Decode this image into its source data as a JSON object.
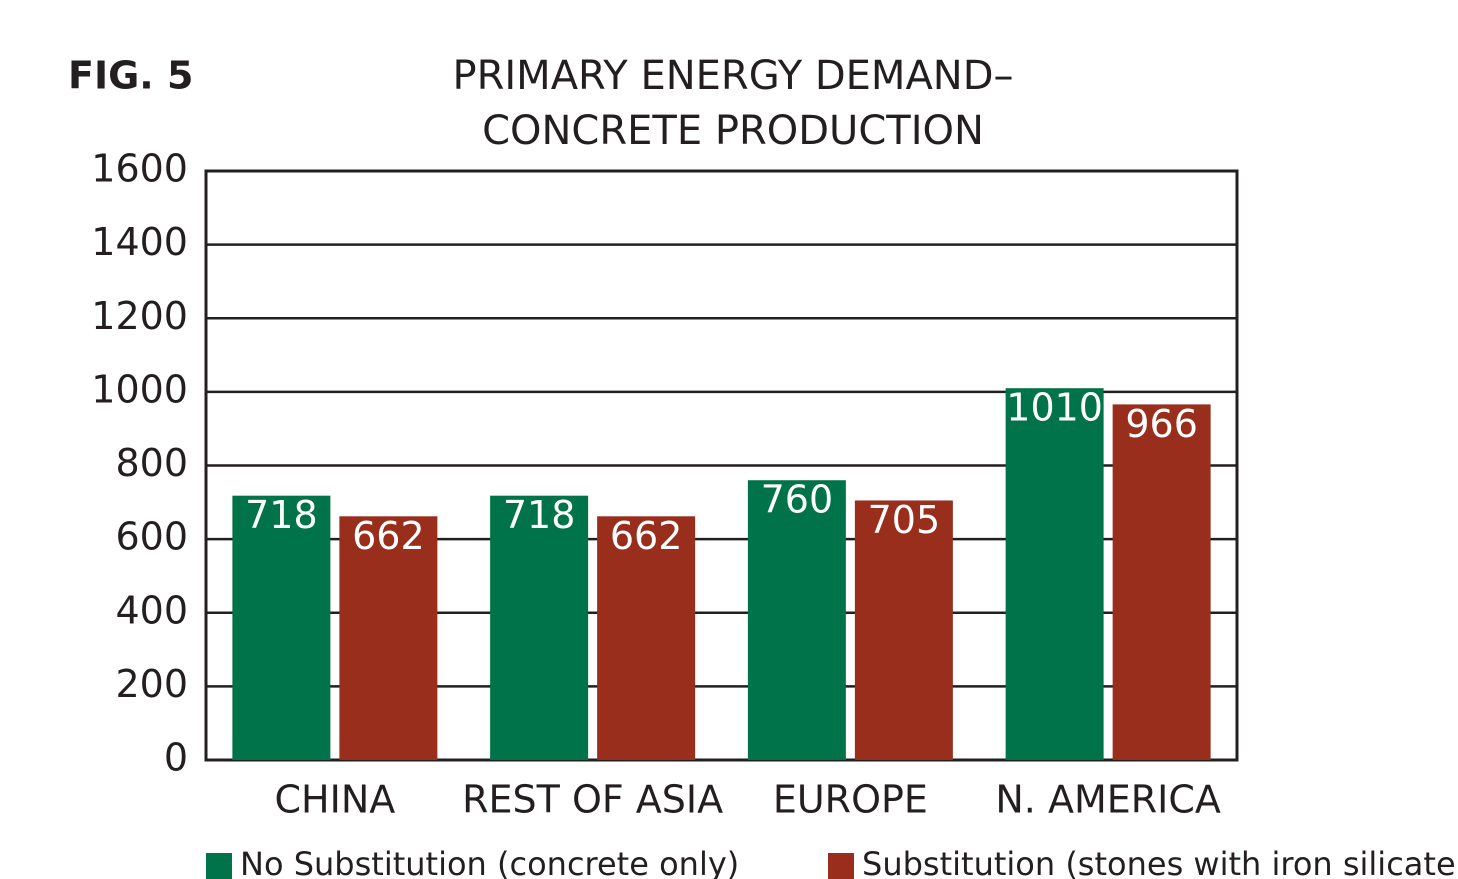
{
  "chart_data": {
    "type": "bar",
    "figure_label": "FIG. 5",
    "title": [
      "PRIMARY ENERGY DEMAND–",
      "CONCRETE PRODUCTION"
    ],
    "categories": [
      "CHINA",
      "REST OF ASIA",
      "EUROPE",
      "N. AMERICA"
    ],
    "series": [
      {
        "name": "No Substitution (concrete only)",
        "color": "#00734a",
        "values": [
          718,
          718,
          760,
          1010
        ]
      },
      {
        "name": "Substitution (stones with iron silicate)",
        "color": "#9a2e1c",
        "values": [
          662,
          662,
          705,
          966
        ]
      }
    ],
    "ylim": [
      0,
      1600
    ],
    "yticks": [
      0,
      200,
      400,
      600,
      800,
      1000,
      1200,
      1400,
      1600
    ],
    "grid": true,
    "legend": "bottom"
  }
}
